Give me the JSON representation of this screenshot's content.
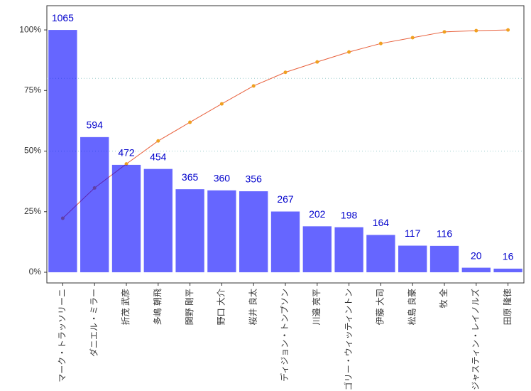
{
  "chart_data": {
    "type": "pareto",
    "categories": [
      "マーク・トラッソリーニ",
      "ダニエル・ミラー",
      "折茂 武彦",
      "多嶋 朝飛",
      "関野 剛平",
      "野口 大介",
      "桜井 良太",
      "ディジョン・トンプソン",
      "川邉 亮平",
      "グレゴリー・ウィッティントン",
      "伊藤 大司",
      "松島 良豪",
      "牧 全",
      "ジャスティン・レイノルズ",
      "田原 隆徳"
    ],
    "series": [
      {
        "type": "bar",
        "axis": "y2",
        "color": "#0000ff",
        "values": [
          1065,
          594,
          472,
          454,
          365,
          360,
          356,
          267,
          202,
          198,
          164,
          117,
          116,
          20,
          16
        ]
      },
      {
        "type": "line",
        "axis": "y",
        "color": "#e8603c",
        "marker_color": "#f0a020",
        "values": [
          22.3,
          34.8,
          44.7,
          54.2,
          61.9,
          69.5,
          76.9,
          82.5,
          86.8,
          90.9,
          94.4,
          96.8,
          99.2,
          99.7,
          100
        ]
      }
    ],
    "ylim": [
      -4.4,
      110
    ],
    "yticks": [
      {
        "value": 0,
        "label": "0%"
      },
      {
        "value": 25,
        "label": "25%"
      },
      {
        "value": 50,
        "label": "50%"
      },
      {
        "value": 75,
        "label": "75%"
      },
      {
        "value": 100,
        "label": "100%"
      }
    ],
    "y2lim": [
      -46.9,
      1171.5
    ],
    "reference_lines": [
      50,
      80
    ],
    "label_color": "#0000cc"
  }
}
